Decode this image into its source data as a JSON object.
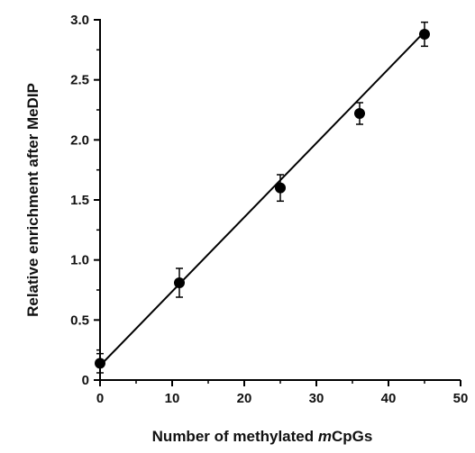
{
  "chart_data": {
    "type": "scatter",
    "title": "",
    "xlabel": "Number of methylated ",
    "xlabel_italic": "m",
    "xlabel_suffix": "CpGs",
    "ylabel": "Relative enrichment after MeDIP",
    "xlim": [
      0,
      50
    ],
    "ylim": [
      0,
      3.0
    ],
    "x_ticks": [
      0,
      10,
      20,
      30,
      40,
      50
    ],
    "x_tick_labels": [
      "0",
      "10",
      "20",
      "30",
      "40",
      "50"
    ],
    "y_ticks": [
      0,
      0.5,
      1.0,
      1.5,
      2.0,
      2.5,
      3.0
    ],
    "y_tick_labels": [
      "0",
      "0.5",
      "1.0",
      "1.5",
      "2.0",
      "2.5",
      "3.0"
    ],
    "grid": false,
    "series": [
      {
        "x": [
          0,
          11,
          25,
          36,
          45
        ],
        "y": [
          0.14,
          0.81,
          1.6,
          2.22,
          2.88
        ],
        "error": [
          0.08,
          0.12,
          0.11,
          0.09,
          0.1
        ]
      }
    ],
    "fit_line": {
      "x": [
        0,
        45
      ],
      "y": [
        0.12,
        2.9
      ]
    },
    "colors": {
      "marker": "#000000",
      "line": "#000000",
      "axis": "#000000"
    }
  }
}
